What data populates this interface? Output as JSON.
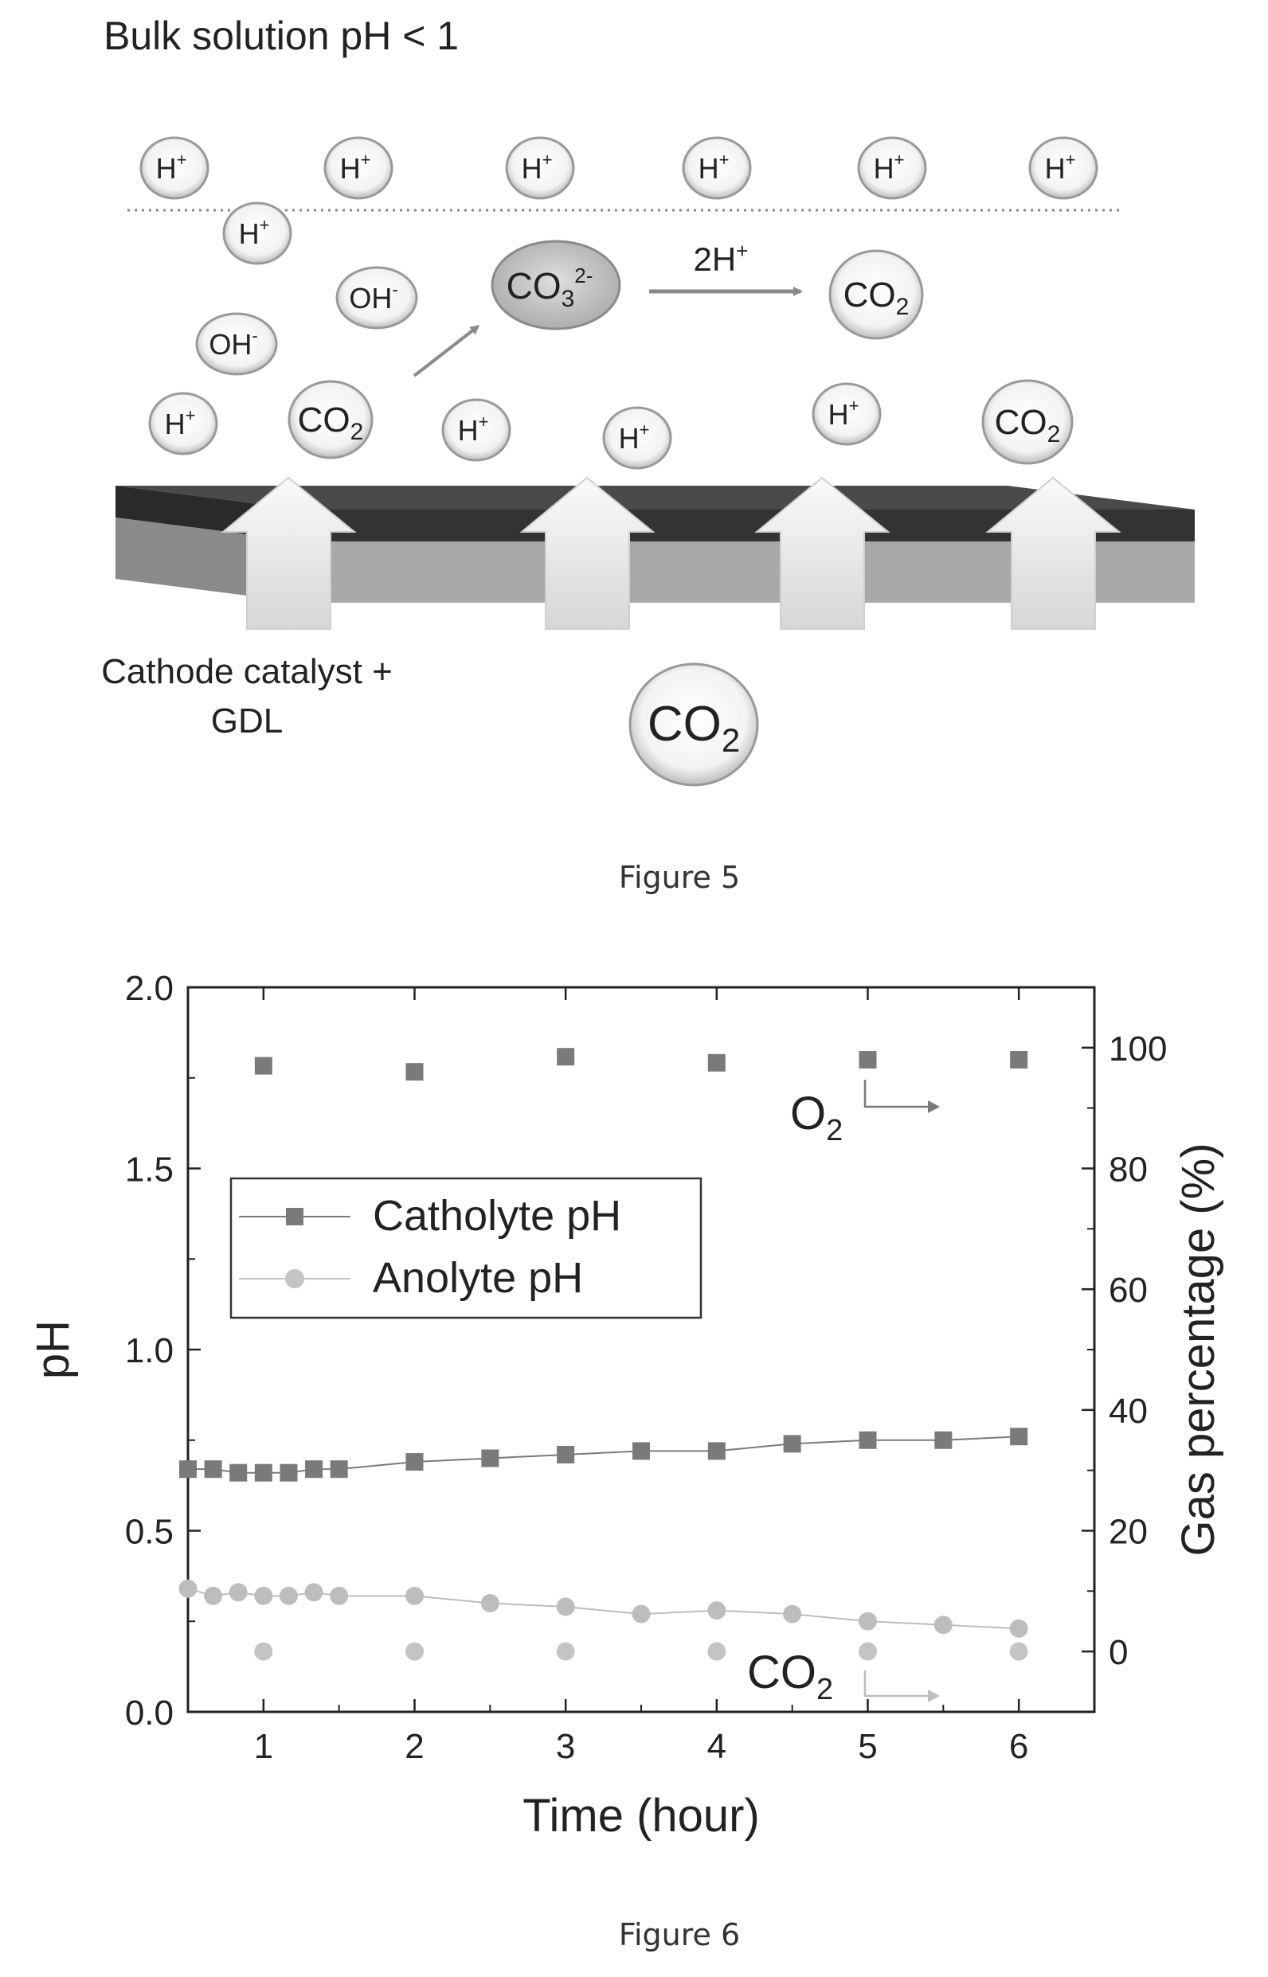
{
  "figure5": {
    "caption": "Figure 5",
    "bulk_label": "Bulk solution pH < 1",
    "cathode_label_line1": "Cathode catalyst +",
    "cathode_label_line2": "GDL",
    "reaction_label": "2H",
    "plus": "+",
    "minus": "-",
    "carbonate_charge": "2-",
    "h": "H",
    "oh": "OH",
    "co": "CO",
    "sub2": "2",
    "sub3": "3"
  },
  "figure6": {
    "caption": "Figure 6",
    "legend": {
      "catholyte": "Catholyte pH",
      "anolyte": "Anolyte pH"
    },
    "annotations": {
      "o2_main": "O",
      "o2_sub": "2",
      "co2_main": "CO",
      "co2_sub": "2"
    }
  },
  "chart_data": {
    "type": "scatter",
    "xlabel": "Time (hour)",
    "ylabel": "pH",
    "y2label": "Gas percentage (%)",
    "xlim": [
      0.5,
      6.5
    ],
    "ylim": [
      0.0,
      2.0
    ],
    "y2lim": [
      -10,
      110
    ],
    "x_ticks": [
      1,
      2,
      3,
      4,
      5,
      6
    ],
    "x_tick_labels": [
      "1",
      "2",
      "3",
      "4",
      "5",
      "6"
    ],
    "y_ticks": [
      0.0,
      0.5,
      1.0,
      1.5,
      2.0
    ],
    "y_tick_labels": [
      "0.0",
      "0.5",
      "1.0",
      "1.5",
      "2.0"
    ],
    "y2_ticks": [
      0,
      20,
      40,
      60,
      80,
      100
    ],
    "y2_tick_labels": [
      "0",
      "20",
      "40",
      "60",
      "80",
      "100"
    ],
    "legend_position": "center-left",
    "series": [
      {
        "name": "Catholyte pH",
        "axis": "left",
        "marker": "square",
        "connected": true,
        "color": "#7a7a7a",
        "x": [
          0.5,
          0.6667,
          0.8333,
          1.0,
          1.1667,
          1.3333,
          1.5,
          2.0,
          2.5,
          3.0,
          3.5,
          4.0,
          4.5,
          5.0,
          5.5,
          6.0
        ],
        "y": [
          0.67,
          0.67,
          0.66,
          0.66,
          0.66,
          0.67,
          0.67,
          0.69,
          0.7,
          0.71,
          0.72,
          0.72,
          0.74,
          0.75,
          0.75,
          0.76
        ]
      },
      {
        "name": "Anolyte pH",
        "axis": "left",
        "marker": "circle",
        "connected": true,
        "color": "#bdbdbd",
        "x": [
          0.5,
          0.6667,
          0.8333,
          1.0,
          1.1667,
          1.3333,
          1.5,
          2.0,
          2.5,
          3.0,
          3.5,
          4.0,
          4.5,
          5.0,
          5.5,
          6.0
        ],
        "y": [
          0.34,
          0.32,
          0.33,
          0.32,
          0.32,
          0.33,
          0.32,
          0.32,
          0.3,
          0.29,
          0.27,
          0.28,
          0.27,
          0.25,
          0.24,
          0.23
        ]
      },
      {
        "name": "O2",
        "axis": "right",
        "marker": "square",
        "connected": false,
        "color": "#7a7a7a",
        "x": [
          1,
          2,
          3,
          4,
          5,
          6
        ],
        "y": [
          97,
          96,
          98.5,
          97.5,
          98,
          98
        ]
      },
      {
        "name": "CO2",
        "axis": "right",
        "marker": "circle",
        "connected": false,
        "color": "#c4c4c4",
        "x": [
          1,
          2,
          3,
          4,
          5,
          6
        ],
        "y": [
          0,
          0,
          0,
          0,
          0,
          0
        ]
      }
    ]
  }
}
